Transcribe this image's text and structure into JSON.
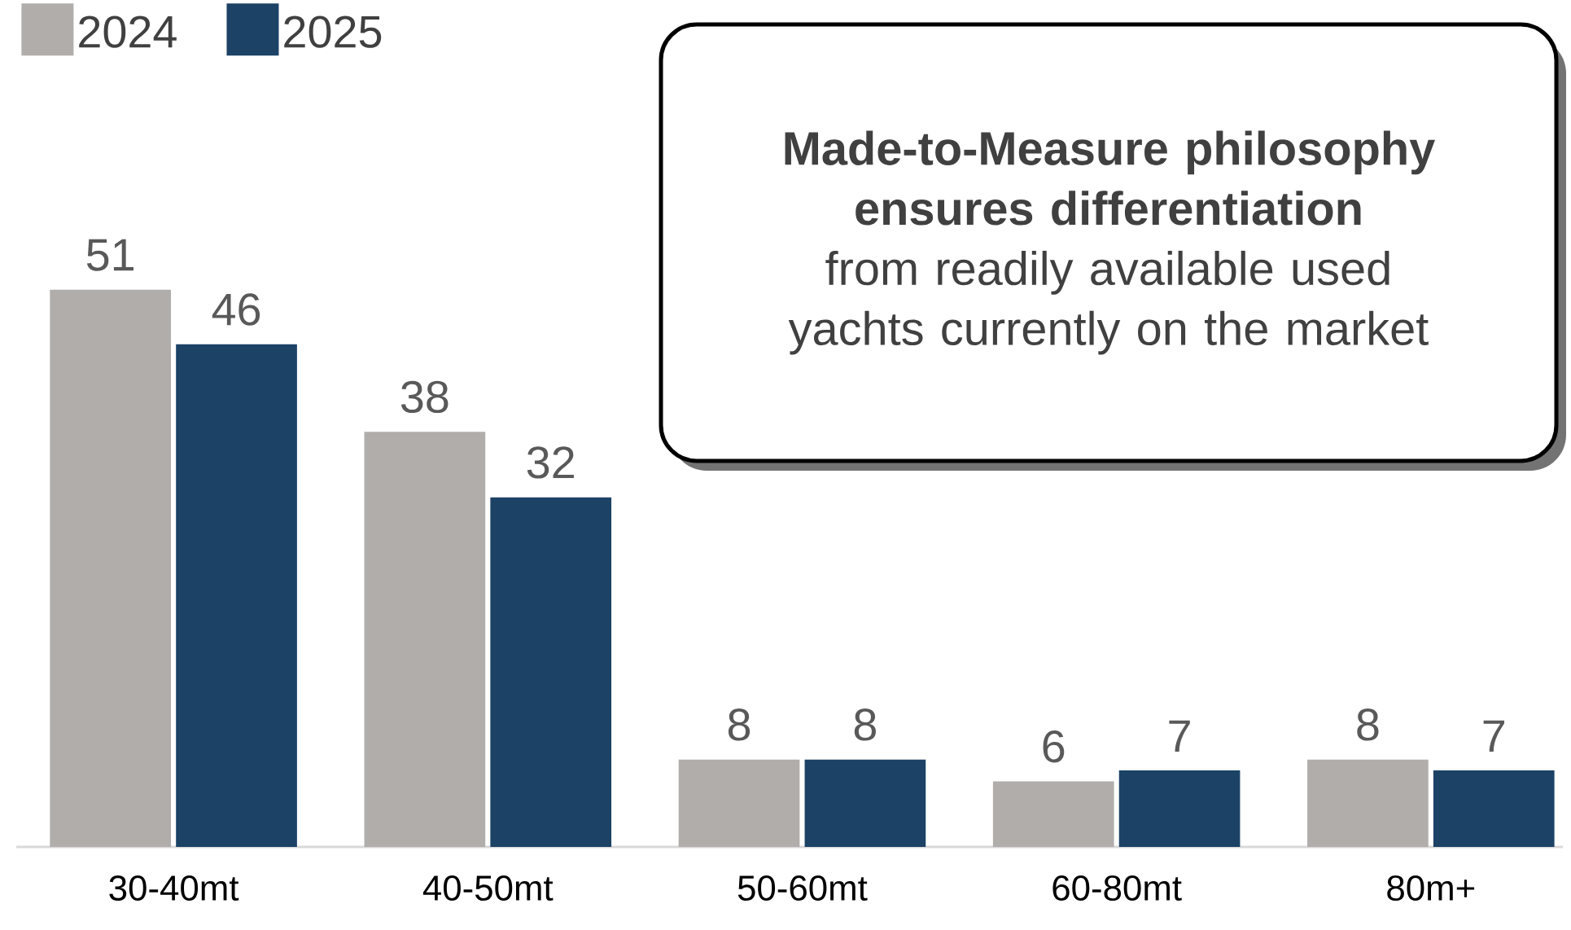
{
  "chart_data": {
    "type": "bar",
    "categories": [
      "30-40mt",
      "40-50mt",
      "50-60mt",
      "60-80mt",
      "80m+"
    ],
    "series": [
      {
        "name": "2024",
        "color": "#b0adab",
        "values": [
          51,
          38,
          8,
          6,
          8
        ]
      },
      {
        "name": "2025",
        "color": "#1c4266",
        "values": [
          46,
          32,
          8,
          7,
          7
        ]
      }
    ],
    "data_labels": true,
    "legend": "top left",
    "annotations": [
      "**Made-to-Measure philosophy ensures differentiation** from readily available used yachts currently on the market"
    ]
  }
}
